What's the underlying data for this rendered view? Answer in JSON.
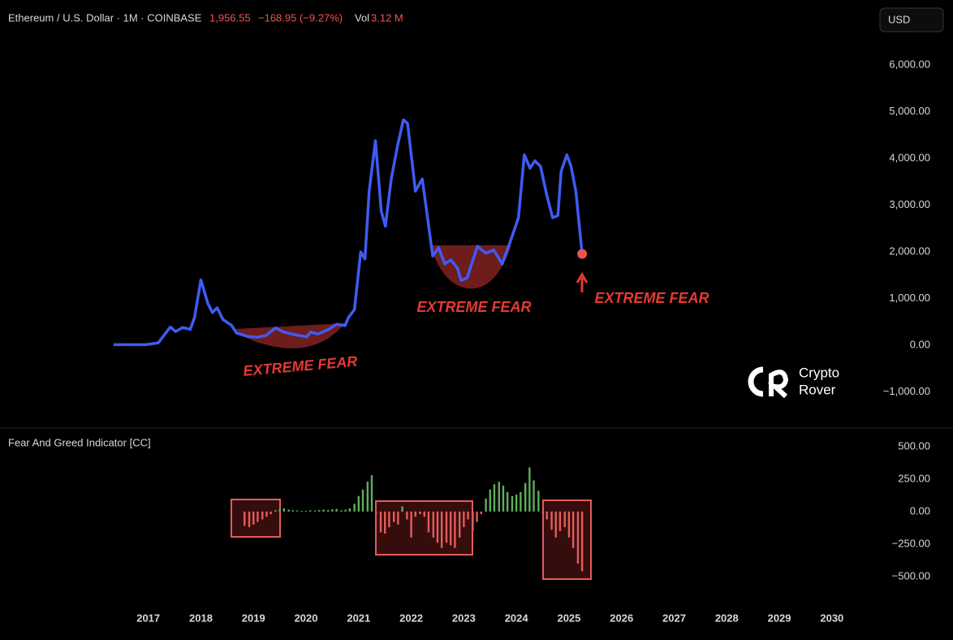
{
  "header": {
    "symbol": "Ethereum / U.S. Dollar · 1M · COINBASE",
    "price": "1,956.55",
    "change": "−168.95 (−9.27%)",
    "vol_label": "Vol",
    "vol": "3.12 M"
  },
  "currency": "USD",
  "watermark": [
    "Crypto",
    "Rover"
  ],
  "chart_data": [
    {
      "type": "line",
      "color": "#3f5bf2",
      "x": [
        2016.34,
        2016.95,
        2017.19,
        2017.42,
        2017.52,
        2017.65,
        2017.8,
        2017.88,
        2018.0,
        2018.13,
        2018.22,
        2018.31,
        2018.42,
        2018.58,
        2018.68,
        2018.88,
        2019.08,
        2019.24,
        2019.42,
        2019.58,
        2019.81,
        2020.01,
        2020.09,
        2020.23,
        2020.43,
        2020.58,
        2020.74,
        2020.81,
        2020.92,
        2021.04,
        2021.12,
        2021.2,
        2021.32,
        2021.43,
        2021.51,
        2021.62,
        2021.74,
        2021.85,
        2021.93,
        2022.08,
        2022.21,
        2022.41,
        2022.52,
        2022.64,
        2022.75,
        2022.88,
        2022.95,
        2023.06,
        2023.26,
        2023.42,
        2023.57,
        2023.73,
        2023.88,
        2024.04,
        2024.15,
        2024.26,
        2024.35,
        2024.46,
        2024.57,
        2024.69,
        2024.79,
        2024.85,
        2024.96,
        2025.04,
        2025.13,
        2025.25
      ],
      "values": [
        10,
        10,
        50,
        390,
        290,
        380,
        340,
        600,
        1400,
        900,
        700,
        800,
        550,
        430,
        260,
        190,
        170,
        210,
        370,
        280,
        220,
        180,
        280,
        240,
        340,
        450,
        420,
        600,
        760,
        2000,
        1850,
        3300,
        4380,
        2870,
        2550,
        3560,
        4270,
        4830,
        4750,
        3300,
        3560,
        1910,
        2090,
        1740,
        1830,
        1650,
        1390,
        1440,
        2120,
        1970,
        2040,
        1740,
        2210,
        2730,
        4080,
        3790,
        3950,
        3830,
        3250,
        2730,
        2780,
        3720,
        4080,
        3830,
        3300,
        1956.55
      ],
      "xlim": [
        2014.18,
        2030.62
      ],
      "ylim": [
        -1740,
        6700
      ],
      "yticks": [
        {
          "value": -1000,
          "label": "−1,000.00"
        },
        {
          "value": 0,
          "label": "0.00"
        },
        {
          "value": 1000,
          "label": "1,000.00"
        },
        {
          "value": 2000,
          "label": "2,000.00"
        },
        {
          "value": 3000,
          "label": "3,000.00"
        },
        {
          "value": 4000,
          "label": "4,000.00"
        },
        {
          "value": 5000,
          "label": "5,000.00"
        },
        {
          "value": 6000,
          "label": "6,000.00"
        }
      ],
      "annotations": [
        "EXTREME FEAR",
        "EXTREME FEAR",
        "EXTREME FEAR"
      ]
    },
    {
      "type": "bar",
      "title": "Fear And Greed Indicator [CC]",
      "positive_color": "#5fae5a",
      "negative_color": "#e25c5c",
      "x": [
        2018.83,
        2018.92,
        2019.0,
        2019.08,
        2019.17,
        2019.25,
        2019.33,
        2019.42,
        2019.5,
        2019.58,
        2019.67,
        2019.75,
        2019.83,
        2019.92,
        2020.0,
        2020.08,
        2020.17,
        2020.25,
        2020.33,
        2020.42,
        2020.5,
        2020.58,
        2020.67,
        2020.75,
        2020.83,
        2020.92,
        2021.0,
        2021.08,
        2021.17,
        2021.25,
        2021.33,
        2021.42,
        2021.5,
        2021.58,
        2021.67,
        2021.75,
        2021.83,
        2021.92,
        2022.0,
        2022.08,
        2022.17,
        2022.25,
        2022.33,
        2022.42,
        2022.5,
        2022.58,
        2022.67,
        2022.75,
        2022.83,
        2022.92,
        2023.0,
        2023.08,
        2023.17,
        2023.25,
        2023.33,
        2023.42,
        2023.5,
        2023.58,
        2023.67,
        2023.75,
        2023.83,
        2023.92,
        2024.0,
        2024.08,
        2024.17,
        2024.25,
        2024.33,
        2024.42,
        2024.5,
        2024.58,
        2024.67,
        2024.75,
        2024.83,
        2024.92,
        2025.0,
        2025.08,
        2025.17,
        2025.25
      ],
      "values": [
        -110,
        -120,
        -100,
        -80,
        -60,
        -40,
        -20,
        10,
        20,
        25,
        15,
        10,
        8,
        5,
        6,
        10,
        8,
        12,
        15,
        12,
        18,
        20,
        10,
        15,
        25,
        60,
        120,
        170,
        230,
        280,
        -20,
        -160,
        -170,
        -120,
        -80,
        -100,
        40,
        -60,
        -200,
        -40,
        -20,
        -40,
        -160,
        -200,
        -240,
        -280,
        -240,
        -260,
        -280,
        -200,
        -120,
        -60,
        -150,
        -80,
        -20,
        100,
        170,
        210,
        230,
        200,
        150,
        120,
        130,
        150,
        220,
        340,
        240,
        160,
        -10,
        -60,
        -140,
        -200,
        -150,
        -120,
        -200,
        -280,
        -400,
        -460
      ],
      "xlim": [
        2014.18,
        2030.62
      ],
      "ylim": [
        -720,
        612
      ],
      "xticks": [
        2017,
        2018,
        2019,
        2020,
        2021,
        2022,
        2023,
        2024,
        2025,
        2026,
        2027,
        2028,
        2029,
        2030
      ],
      "yticks": [
        {
          "value": -500,
          "label": "−500.00"
        },
        {
          "value": -250,
          "label": "−250.00"
        },
        {
          "value": 0,
          "label": "0.00"
        },
        {
          "value": 250,
          "label": "250.00"
        },
        {
          "value": 500,
          "label": "500.00"
        }
      ]
    }
  ]
}
